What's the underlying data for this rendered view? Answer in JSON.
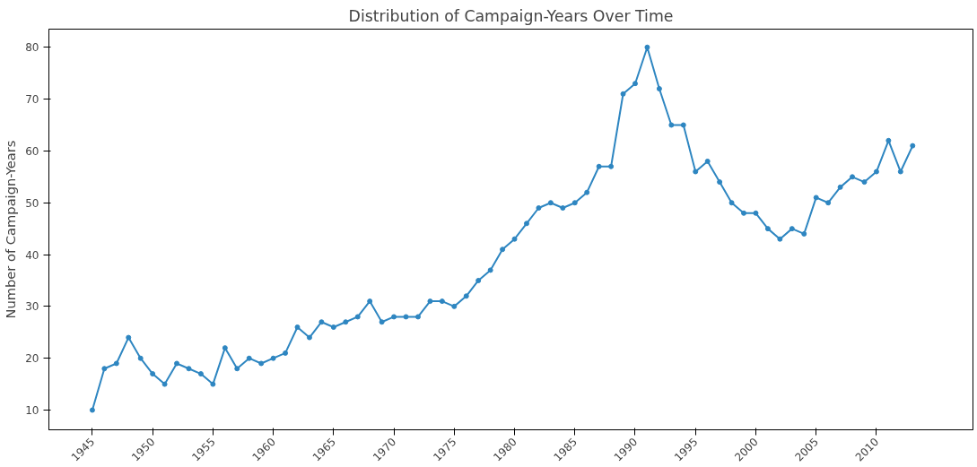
{
  "chart_data": {
    "type": "line",
    "title": "Distribution of Campaign-Years Over Time",
    "ylabel": "Number of Campaign-Years",
    "x": [
      1945,
      1946,
      1947,
      1948,
      1949,
      1950,
      1951,
      1952,
      1953,
      1954,
      1955,
      1956,
      1957,
      1958,
      1959,
      1960,
      1961,
      1962,
      1963,
      1964,
      1965,
      1966,
      1967,
      1968,
      1969,
      1970,
      1971,
      1972,
      1973,
      1974,
      1975,
      1976,
      1977,
      1978,
      1979,
      1980,
      1981,
      1982,
      1983,
      1984,
      1985,
      1986,
      1987,
      1988,
      1989,
      1990,
      1991,
      1992,
      1993,
      1994,
      1995,
      1996,
      1997,
      1998,
      1999,
      2000,
      2001,
      2002,
      2003,
      2004,
      2005,
      2006,
      2007,
      2008,
      2009,
      2010,
      2011,
      2012,
      2013
    ],
    "series": [
      {
        "color": "#2e86c1",
        "values": [
          10,
          18,
          19,
          24,
          20,
          17,
          15,
          19,
          18,
          17,
          15,
          22,
          18,
          20,
          19,
          20,
          21,
          26,
          24,
          27,
          26,
          27,
          28,
          31,
          27,
          28,
          28,
          28,
          31,
          31,
          30,
          32,
          35,
          37,
          41,
          43,
          46,
          49,
          50,
          49,
          50,
          52,
          57,
          57,
          71,
          73,
          80,
          72,
          65,
          65,
          56,
          58,
          54,
          50,
          48,
          48,
          45,
          43,
          45,
          44,
          51,
          50,
          53,
          55,
          54,
          56,
          62,
          56,
          61
        ]
      }
    ],
    "xlim": [
      1941.4,
      2018
    ],
    "ylim": [
      6.2,
      83.5
    ],
    "xticks": [
      1945,
      1950,
      1955,
      1960,
      1965,
      1970,
      1975,
      1980,
      1985,
      1990,
      1995,
      2000,
      2005,
      2010
    ],
    "yticks": [
      10,
      20,
      30,
      40,
      50,
      60,
      70,
      80
    ],
    "grid": false,
    "marker": "circle",
    "line_style": "solid"
  }
}
